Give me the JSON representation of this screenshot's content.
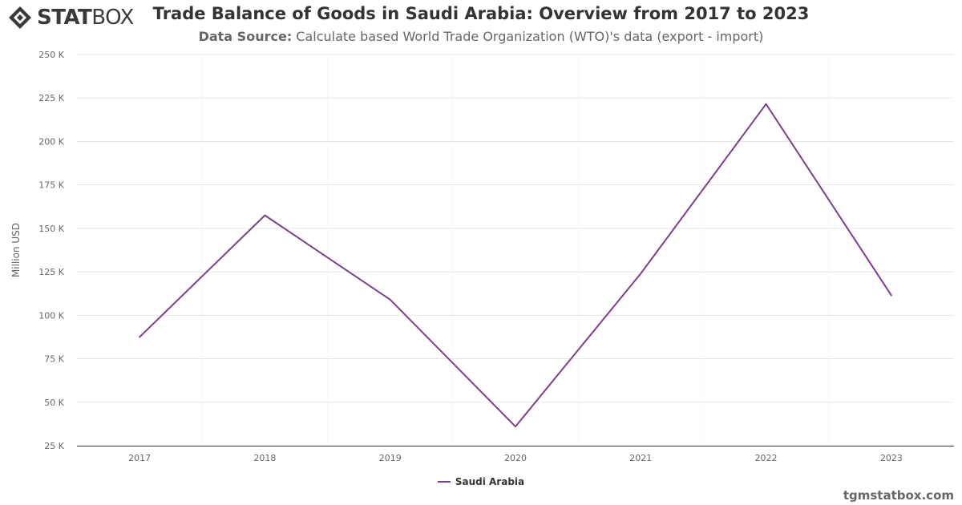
{
  "logo": {
    "text_bold": "STAT",
    "text_light": "BOX",
    "icon": "statbox-diamond-icon"
  },
  "header": {
    "title": "Trade Balance of Goods in Saudi Arabia: Overview from 2017 to 2023",
    "subtitle_label": "Data Source:",
    "subtitle_text": "Calculate based World Trade Organization (WTO)'s data (export - import)"
  },
  "footer": {
    "credit": "tgmstatbox.com"
  },
  "colors": {
    "series": "#7b3f8c",
    "grid": "#e6e6e6",
    "axis": "#333333",
    "text": "#666666"
  },
  "chart_data": {
    "type": "line",
    "title": "Trade Balance of Goods in Saudi Arabia: Overview from 2017 to 2023",
    "subtitle": "Data Source: Calculate based World Trade Organization (WTO)'s data (export - import)",
    "xlabel": "",
    "ylabel": "Million USD",
    "categories": [
      "2017",
      "2018",
      "2019",
      "2020",
      "2021",
      "2022",
      "2023"
    ],
    "series": [
      {
        "name": "Saudi Arabia",
        "values": [
          87500,
          157500,
          109000,
          36000,
          124000,
          221500,
          111500
        ]
      }
    ],
    "ylim": [
      25000,
      250000
    ],
    "yticks": [
      25000,
      50000,
      75000,
      100000,
      125000,
      150000,
      175000,
      200000,
      225000,
      250000
    ],
    "ytick_labels": [
      "25 K",
      "50 K",
      "75 K",
      "100 K",
      "125 K",
      "150 K",
      "175 K",
      "200 K",
      "225 K",
      "250 K"
    ],
    "grid": true,
    "legend": "bottom-center"
  }
}
